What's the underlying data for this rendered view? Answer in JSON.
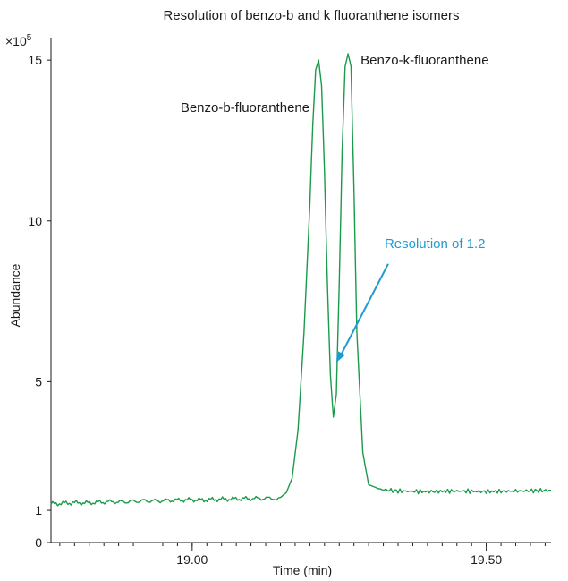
{
  "chart_data": {
    "type": "line",
    "title": "Resolution of benzo-b and k fluoranthene isomers",
    "xlabel": "Time (min)",
    "ylabel": "Abundance",
    "y_multiplier": "×10",
    "y_multiplier_exp": "5",
    "xlim": [
      18.76,
      19.61
    ],
    "ylim": [
      0,
      15.7
    ],
    "x_ticks": [
      {
        "value": 19.0,
        "label": "19.00"
      },
      {
        "value": 19.5,
        "label": "19.50"
      }
    ],
    "x_minor_step": 0.025,
    "y_ticks": [
      {
        "value": 0,
        "label": "0"
      },
      {
        "value": 1,
        "label": "1"
      },
      {
        "value": 5,
        "label": "5"
      },
      {
        "value": 10,
        "label": "10"
      },
      {
        "value": 15,
        "label": "15"
      }
    ],
    "grid": false,
    "series": [
      {
        "color": "#1a9a4a",
        "x": [
          18.76,
          18.78,
          18.8,
          18.82,
          18.84,
          18.86,
          18.88,
          18.9,
          18.92,
          18.94,
          18.96,
          18.98,
          19.0,
          19.02,
          19.04,
          19.06,
          19.08,
          19.1,
          19.12,
          19.14,
          19.15,
          19.16,
          19.17,
          19.18,
          19.19,
          19.2,
          19.205,
          19.21,
          19.215,
          19.22,
          19.225,
          19.23,
          19.235,
          19.24,
          19.245,
          19.25,
          19.255,
          19.26,
          19.265,
          19.27,
          19.275,
          19.28,
          19.29,
          19.3,
          19.32,
          19.35,
          19.4,
          19.45,
          19.5,
          19.55,
          19.61
        ],
        "y": [
          1.2,
          1.22,
          1.24,
          1.23,
          1.25,
          1.27,
          1.26,
          1.28,
          1.3,
          1.29,
          1.31,
          1.32,
          1.33,
          1.32,
          1.34,
          1.35,
          1.36,
          1.37,
          1.37,
          1.38,
          1.4,
          1.55,
          2.0,
          3.5,
          6.5,
          10.5,
          13.0,
          14.7,
          15.0,
          14.2,
          11.5,
          8.0,
          5.2,
          3.9,
          4.6,
          8.0,
          12.2,
          14.8,
          15.2,
          14.8,
          11.0,
          6.5,
          2.8,
          1.8,
          1.65,
          1.6,
          1.58,
          1.6,
          1.58,
          1.6,
          1.62
        ]
      }
    ],
    "annotations": [
      {
        "text": "Benzo-b-fluoranthene",
        "x": 19.23,
        "y": 15.0
      },
      {
        "text": "Benzo-k-fluoranthene",
        "x": 19.265,
        "y": 15.2
      },
      {
        "text": "Resolution of 1.2",
        "target_x": 19.245,
        "target_y": 5.6,
        "color": "#1f9bd1"
      }
    ]
  }
}
